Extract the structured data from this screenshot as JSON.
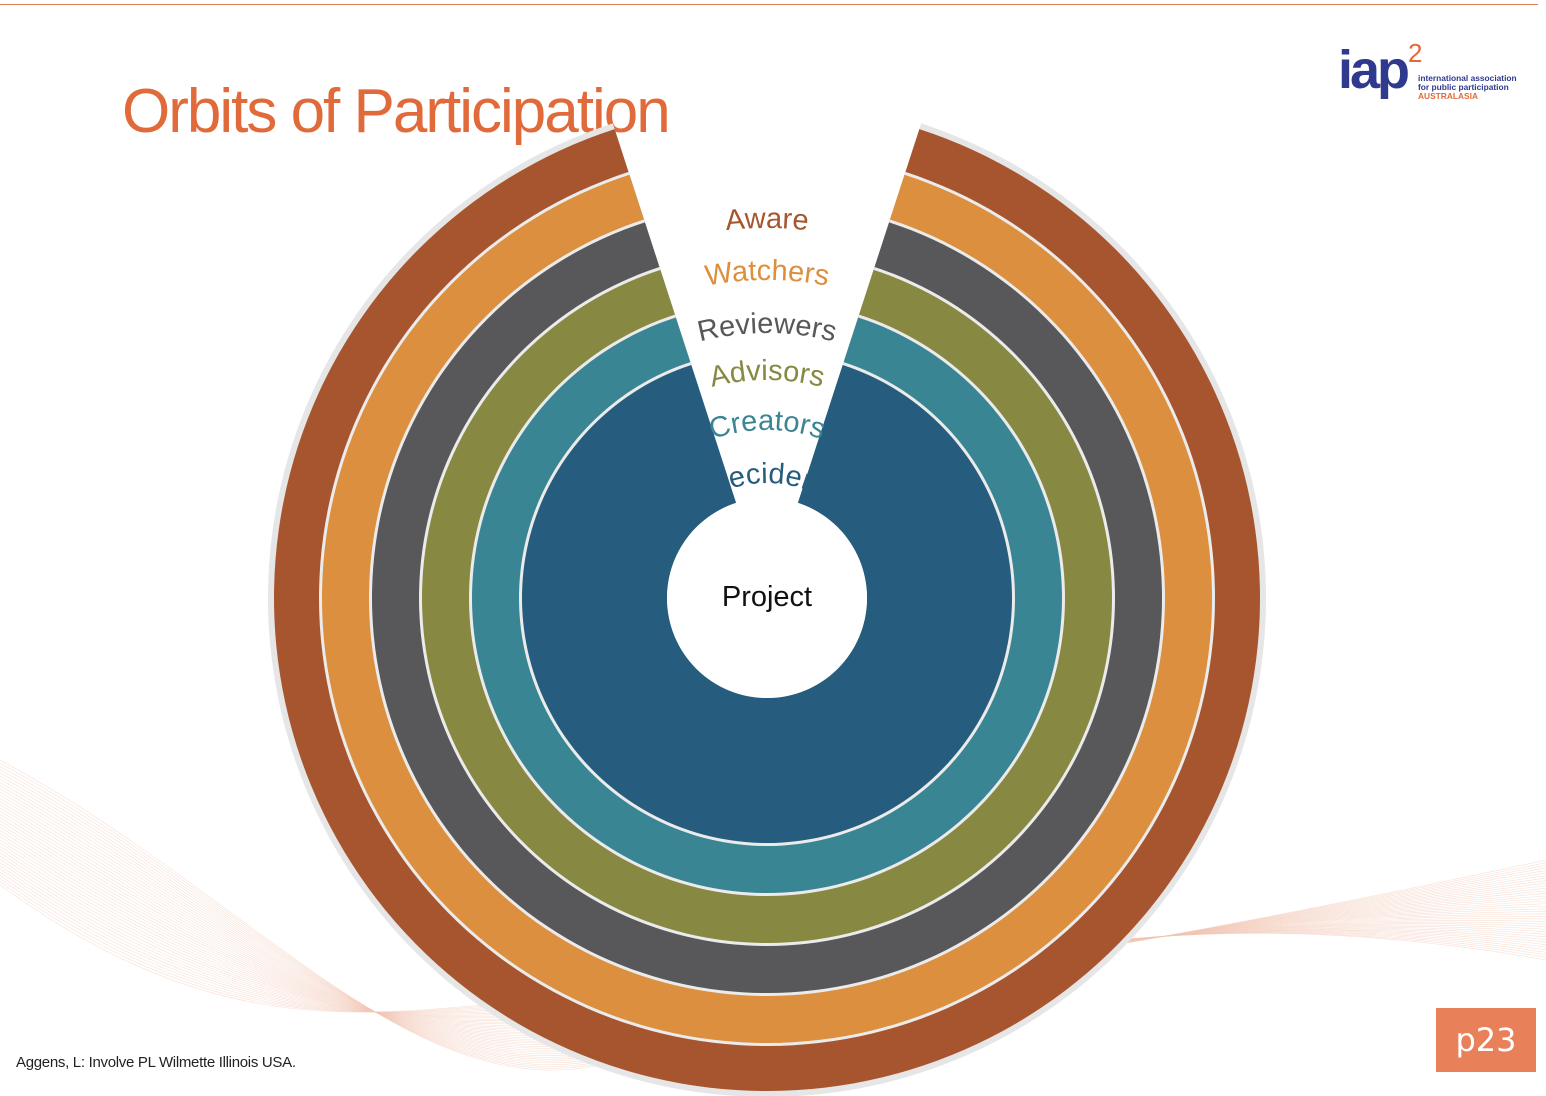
{
  "slide": {
    "title": "Orbits of Participation",
    "citation": "Aggens, L: Involve PL Wilmette Illinois USA.",
    "page_label": "p23"
  },
  "logo": {
    "mark": "iap",
    "superscript": "2",
    "line1": "international association",
    "line2": "for public participation",
    "region": "AUSTRALASIA"
  },
  "orbits": {
    "center_label": "Project",
    "rings": [
      {
        "label": "Deciders",
        "color": "#265c7d"
      },
      {
        "label": "Creators",
        "color": "#3a8594"
      },
      {
        "label": "Advisors",
        "color": "#878842"
      },
      {
        "label": "Reviewers",
        "color": "#58585a"
      },
      {
        "label": "Watchers",
        "color": "#dc8f3e"
      },
      {
        "label": "Aware",
        "color": "#a7552f"
      }
    ]
  },
  "colors": {
    "title": "#e06a3a",
    "accent": "#e8805a",
    "logo_blue": "#2f3a8f"
  }
}
